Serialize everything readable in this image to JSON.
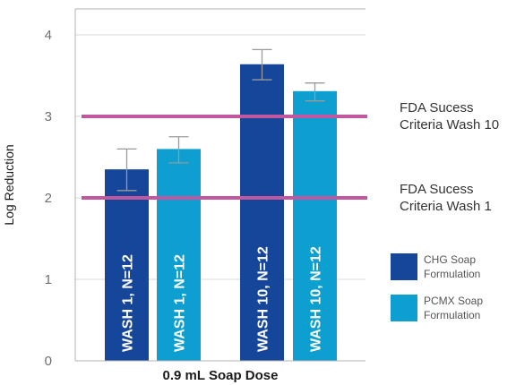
{
  "chart_data": {
    "type": "bar",
    "ylabel": "Log Reduction",
    "xlabel": "0.9 mL Soap Dose",
    "ylim": [
      0,
      4.3
    ],
    "y_ticks": [
      "0",
      "1",
      "2",
      "3",
      "4"
    ],
    "grid": true,
    "legend_position": "right",
    "bars": [
      {
        "series": "CHG Soap Formulation",
        "label": "WASH 1, N=12",
        "value": 2.35,
        "err_low": 2.09,
        "err_high": 2.6
      },
      {
        "series": "PCMX Soap Formulation",
        "label": "WASH 1, N=12",
        "value": 2.6,
        "err_low": 2.43,
        "err_high": 2.75
      },
      {
        "series": "CHG Soap Formulation",
        "label": "WASH 10, N=12",
        "value": 3.64,
        "err_low": 3.45,
        "err_high": 3.82
      },
      {
        "series": "PCMX Soap Formulation",
        "label": "WASH 10, N=12",
        "value": 3.31,
        "err_low": 3.19,
        "err_high": 3.41
      }
    ],
    "series": [
      {
        "name": "CHG Soap Formulation",
        "name_lines": [
          "CHG Soap",
          "Formulation"
        ],
        "color": "#15469a"
      },
      {
        "name": "PCMX Soap Formulation",
        "name_lines": [
          "PCMX Soap",
          "Formulation"
        ],
        "color": "#0c9fcf"
      }
    ],
    "reference_lines": [
      {
        "value": 3,
        "label_lines": [
          "FDA Sucess",
          "Criteria Wash 10"
        ],
        "color": "#c0579f"
      },
      {
        "value": 2,
        "label_lines": [
          "FDA Sucess",
          "Criteria Wash 1"
        ],
        "color": "#c0579f"
      }
    ]
  }
}
